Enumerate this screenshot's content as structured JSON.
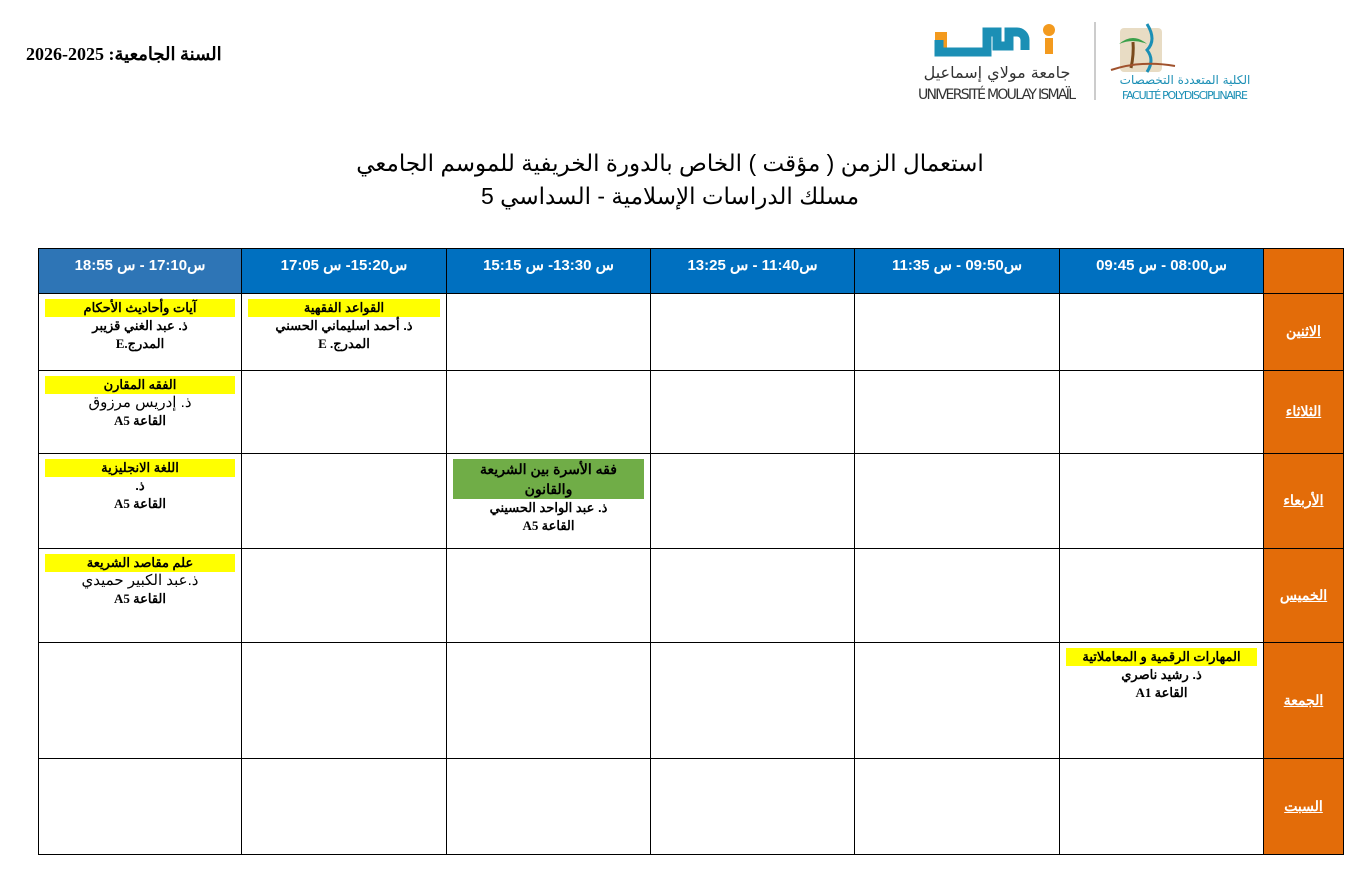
{
  "academic_year": "السنة الجامعية: 2025-2026",
  "logos": {
    "university_ar": "جامعة مولاي إسماعيل",
    "university_fr": "UNIVERSITÉ MOULAY ISMAÏL",
    "faculty_ar": "الكلية المتعددة التخصصات",
    "faculty_fr": "FACULTÉ POLYDISCIPLINAIRE",
    "brand_colors": {
      "blue": "#1b8fb5",
      "orange": "#f39a1e"
    }
  },
  "title_line1": "استعمال الزمن  ( مؤقت ) الخاص بالدورة الخريفية  للموسم الجامعي",
  "title_line2": "مسلك الدراسات الإسلامية - السداسي 5",
  "colors": {
    "header": "#0070c0",
    "day": "#e36c09",
    "subject": "#ffff00",
    "subject_alt": "#70ad47"
  },
  "time_slots": [
    "س08:00 - س 09:45",
    "س09:50 - س 11:35",
    "س11:40 - س 13:25",
    "س 13:30- س 15:15",
    "س15:20- س 17:05",
    "س17:10 - س 18:55"
  ],
  "days": [
    {
      "label": "الاثنين",
      "cells": [
        null,
        null,
        null,
        null,
        {
          "subject": "القواعد الفقهية",
          "teacher": "ذ. أحمد اسليماني الحسني",
          "room": "المدرج. E"
        },
        {
          "subject": "آيات وأحاديث الأحكام",
          "teacher": "ذ. عبد الغني قزيبر",
          "room": "المدرج.E"
        }
      ]
    },
    {
      "label": "الثلاثاء",
      "cells": [
        null,
        null,
        null,
        null,
        null,
        {
          "subject": "الفقه المقارن",
          "teacher": "ذ. إدريس مرزوق",
          "room": "القاعة A5",
          "plain": true
        }
      ]
    },
    {
      "label": "الأربعاء",
      "cells": [
        null,
        null,
        null,
        {
          "subject": "فقه الأسرة بين الشريعة والقانون",
          "teacher": "ذ. عبد الواحد الحسيني",
          "room": "القاعة A5",
          "green": true
        },
        null,
        {
          "subject": "اللغة الانجليزية",
          "teacher": "ذ.",
          "room": "القاعة A5"
        }
      ]
    },
    {
      "label": "الخميس",
      "cells": [
        null,
        null,
        null,
        null,
        null,
        {
          "subject": "علم مقاصد الشريعة",
          "teacher": "ذ.عبد الكبير حميدي",
          "room": "القاعة A5",
          "plain": true
        }
      ]
    },
    {
      "label": "الجمعة",
      "cells": [
        {
          "subject": "المهارات  الرقمية و المعاملاتية",
          "teacher": "ذ.    رشيد ناصري",
          "room": "القاعة A1"
        },
        null,
        null,
        null,
        null,
        null
      ]
    },
    {
      "label": "السبت",
      "cells": [
        null,
        null,
        null,
        null,
        null,
        null
      ]
    }
  ]
}
